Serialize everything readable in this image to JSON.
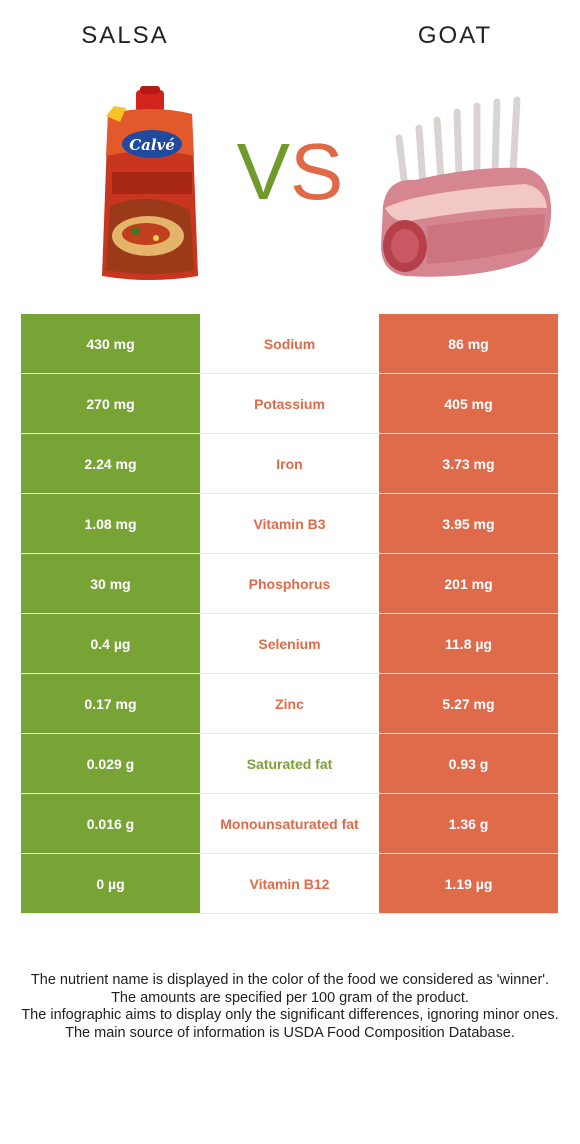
{
  "foods": {
    "left": "SALSA",
    "right": "GOAT"
  },
  "vs": {
    "v": "V",
    "s": "S"
  },
  "colors": {
    "left": "#78a436",
    "right": "#e06b4b"
  },
  "rows": [
    {
      "nutrient": "Sodium",
      "left": "430 mg",
      "right": "86 mg",
      "winner": "right"
    },
    {
      "nutrient": "Potassium",
      "left": "270 mg",
      "right": "405 mg",
      "winner": "right"
    },
    {
      "nutrient": "Iron",
      "left": "2.24 mg",
      "right": "3.73 mg",
      "winner": "right"
    },
    {
      "nutrient": "Vitamin B3",
      "left": "1.08 mg",
      "right": "3.95 mg",
      "winner": "right"
    },
    {
      "nutrient": "Phosphorus",
      "left": "30 mg",
      "right": "201 mg",
      "winner": "right"
    },
    {
      "nutrient": "Selenium",
      "left": "0.4 µg",
      "right": "11.8 µg",
      "winner": "right"
    },
    {
      "nutrient": "Zinc",
      "left": "0.17 mg",
      "right": "5.27 mg",
      "winner": "right"
    },
    {
      "nutrient": "Saturated fat",
      "left": "0.029 g",
      "right": "0.93 g",
      "winner": "left"
    },
    {
      "nutrient": "Monounsaturated fat",
      "left": "0.016 g",
      "right": "1.36 g",
      "winner": "right"
    },
    {
      "nutrient": "Vitamin B12",
      "left": "0 µg",
      "right": "1.19 µg",
      "winner": "right"
    }
  ],
  "footer": [
    "The nutrient name is displayed in the color of the food we considered as 'winner'.",
    "The amounts are specified per 100 gram of the product.",
    "The infographic aims to display only the significant differences, ignoring minor ones.",
    "The main source of information is USDA Food Composition Database."
  ],
  "images": {
    "left": "salsa-pouch-image",
    "right": "goat-rack-meat-image"
  },
  "logo_text": "Calvé"
}
